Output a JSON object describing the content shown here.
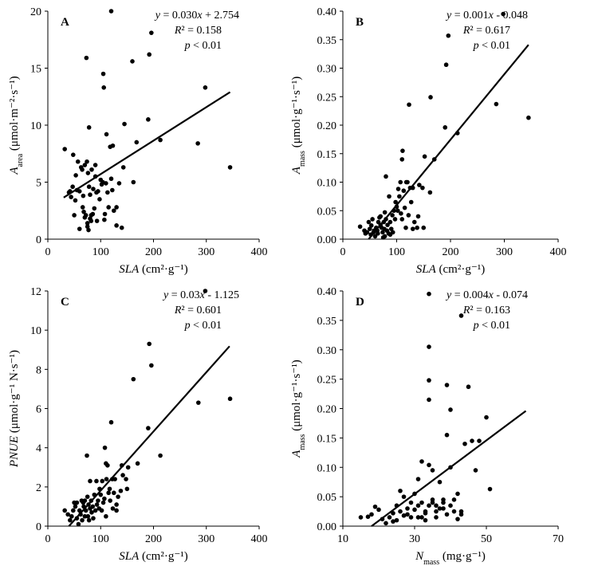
{
  "chart_data": [
    {
      "type": "scatter",
      "panel": "A",
      "xlabel": "SLA (cm²·g⁻¹)",
      "ylabel": "Aarea (μmol·m⁻²·s⁻¹)",
      "xlim": [
        0,
        400
      ],
      "ylim": [
        0,
        20
      ],
      "xticks": [
        "0",
        "100",
        "200",
        "300",
        "400"
      ],
      "yticks": [
        "0",
        "5",
        "10",
        "15",
        "20"
      ],
      "equation": "y = 0.030x + 2.754",
      "r2": "R² = 0.158",
      "p": "p < 0.01",
      "fit": [
        [
          30,
          3.65
        ],
        [
          345,
          12.9
        ]
      ],
      "points": [
        [
          32,
          7.9
        ],
        [
          40,
          4.1
        ],
        [
          42,
          4.2
        ],
        [
          44,
          3.7
        ],
        [
          47,
          4.6
        ],
        [
          48,
          7.4
        ],
        [
          50,
          2.1
        ],
        [
          52,
          3.4
        ],
        [
          53,
          5.6
        ],
        [
          55,
          4.3
        ],
        [
          57,
          6.8
        ],
        [
          60,
          4.2
        ],
        [
          60,
          0.9
        ],
        [
          63,
          6.3
        ],
        [
          65,
          6.1
        ],
        [
          66,
          2.8
        ],
        [
          67,
          3.8
        ],
        [
          68,
          2.4
        ],
        [
          70,
          1.9
        ],
        [
          70,
          6.5
        ],
        [
          72,
          2.1
        ],
        [
          73,
          15.9
        ],
        [
          74,
          6.8
        ],
        [
          75,
          1.4
        ],
        [
          75,
          1.1
        ],
        [
          76,
          5.8
        ],
        [
          77,
          0.8
        ],
        [
          78,
          9.8
        ],
        [
          78,
          4.6
        ],
        [
          80,
          1.8
        ],
        [
          80,
          3.9
        ],
        [
          82,
          1.6
        ],
        [
          82,
          2.1
        ],
        [
          83,
          6.1
        ],
        [
          85,
          2.2
        ],
        [
          86,
          4.4
        ],
        [
          88,
          2.7
        ],
        [
          90,
          5.5
        ],
        [
          90,
          6.5
        ],
        [
          92,
          4.1
        ],
        [
          93,
          1.6
        ],
        [
          95,
          4.2
        ],
        [
          98,
          3.5
        ],
        [
          100,
          5.2
        ],
        [
          102,
          4.8
        ],
        [
          104,
          5.0
        ],
        [
          105,
          14.5
        ],
        [
          106,
          13.3
        ],
        [
          107,
          1.7
        ],
        [
          108,
          2.2
        ],
        [
          110,
          4.9
        ],
        [
          111,
          9.2
        ],
        [
          113,
          4.1
        ],
        [
          115,
          2.8
        ],
        [
          118,
          8.1
        ],
        [
          120,
          20.0
        ],
        [
          120,
          5.3
        ],
        [
          122,
          4.3
        ],
        [
          123,
          8.2
        ],
        [
          125,
          2.5
        ],
        [
          130,
          1.2
        ],
        [
          130,
          2.8
        ],
        [
          135,
          4.9
        ],
        [
          140,
          1.0
        ],
        [
          143,
          6.3
        ],
        [
          145,
          10.1
        ],
        [
          160,
          15.6
        ],
        [
          162,
          5.0
        ],
        [
          168,
          8.5
        ],
        [
          190,
          10.5
        ],
        [
          192,
          16.2
        ],
        [
          196,
          18.1
        ],
        [
          213,
          8.7
        ],
        [
          284,
          8.4
        ],
        [
          298,
          13.3
        ],
        [
          345,
          6.3
        ]
      ]
    },
    {
      "type": "scatter",
      "panel": "B",
      "xlabel": "SLA (cm²·g⁻¹)",
      "ylabel": "Amass (μmol·g⁻¹·s⁻¹)",
      "xlim": [
        0,
        400
      ],
      "ylim": [
        0,
        0.4
      ],
      "xticks": [
        "0",
        "100",
        "200",
        "300",
        "400"
      ],
      "yticks": [
        "0.00",
        "0.05",
        "0.10",
        "0.15",
        "0.20",
        "0.25",
        "0.30",
        "0.35",
        "0.40"
      ],
      "equation": "y = 0.001x - 0.048",
      "r2": "R² = 0.617",
      "p": "p < 0.01",
      "fit": [
        [
          48,
          0.0
        ],
        [
          345,
          0.341
        ]
      ],
      "points": [
        [
          32,
          0.022
        ],
        [
          40,
          0.015
        ],
        [
          42,
          0.01
        ],
        [
          45,
          0.012
        ],
        [
          48,
          0.03
        ],
        [
          50,
          0.018
        ],
        [
          52,
          0.008
        ],
        [
          53,
          0.024
        ],
        [
          55,
          0.035
        ],
        [
          57,
          0.012
        ],
        [
          58,
          0.015
        ],
        [
          60,
          0.005
        ],
        [
          62,
          0.02
        ],
        [
          64,
          0.015
        ],
        [
          65,
          0.01
        ],
        [
          66,
          0.03
        ],
        [
          68,
          0.038
        ],
        [
          70,
          0.025
        ],
        [
          70,
          0.04
        ],
        [
          72,
          0.02
        ],
        [
          74,
          0.012
        ],
        [
          75,
          0.003
        ],
        [
          76,
          0.03
        ],
        [
          77,
          0.018
        ],
        [
          78,
          0.047
        ],
        [
          78,
          0.005
        ],
        [
          80,
          0.035
        ],
        [
          80,
          0.11
        ],
        [
          82,
          0.015
        ],
        [
          83,
          0.025
        ],
        [
          85,
          0.01
        ],
        [
          86,
          0.075
        ],
        [
          88,
          0.008
        ],
        [
          88,
          0.03
        ],
        [
          90,
          0.018
        ],
        [
          92,
          0.042
        ],
        [
          93,
          0.012
        ],
        [
          95,
          0.05
        ],
        [
          97,
          0.035
        ],
        [
          98,
          0.065
        ],
        [
          100,
          0.057
        ],
        [
          102,
          0.05
        ],
        [
          103,
          0.088
        ],
        [
          105,
          0.075
        ],
        [
          107,
          0.1
        ],
        [
          108,
          0.045
        ],
        [
          110,
          0.14
        ],
        [
          110,
          0.035
        ],
        [
          111,
          0.155
        ],
        [
          113,
          0.085
        ],
        [
          115,
          0.055
        ],
        [
          117,
          0.02
        ],
        [
          118,
          0.1
        ],
        [
          120,
          0.1
        ],
        [
          122,
          0.042
        ],
        [
          123,
          0.236
        ],
        [
          125,
          0.09
        ],
        [
          127,
          0.065
        ],
        [
          130,
          0.09
        ],
        [
          130,
          0.018
        ],
        [
          133,
          0.03
        ],
        [
          138,
          0.02
        ],
        [
          140,
          0.04
        ],
        [
          142,
          0.095
        ],
        [
          148,
          0.09
        ],
        [
          150,
          0.02
        ],
        [
          152,
          0.145
        ],
        [
          162,
          0.082
        ],
        [
          163,
          0.249
        ],
        [
          170,
          0.14
        ],
        [
          190,
          0.196
        ],
        [
          192,
          0.306
        ],
        [
          196,
          0.357
        ],
        [
          213,
          0.186
        ],
        [
          285,
          0.237
        ],
        [
          298,
          0.395
        ],
        [
          345,
          0.213
        ]
      ]
    },
    {
      "type": "scatter",
      "panel": "C",
      "xlabel": "SLA (cm²·g⁻¹)",
      "ylabel": "PNUE (μmol·g⁻¹ N·s⁻¹)",
      "xlim": [
        0,
        400
      ],
      "ylim": [
        0,
        12
      ],
      "xticks": [
        "0",
        "100",
        "200",
        "300",
        "400"
      ],
      "yticks": [
        "0",
        "2",
        "4",
        "6",
        "8",
        "10",
        "12"
      ],
      "equation": "y = 0.03x - 1.125",
      "r2": "R² = 0.601",
      "p": "p < 0.01",
      "fit": [
        [
          40,
          0.0
        ],
        [
          344,
          9.18
        ]
      ],
      "points": [
        [
          32,
          0.8
        ],
        [
          38,
          0.6
        ],
        [
          42,
          0.3
        ],
        [
          45,
          0.5
        ],
        [
          48,
          0.8
        ],
        [
          50,
          1.2
        ],
        [
          52,
          1.0
        ],
        [
          55,
          0.4
        ],
        [
          55,
          1.2
        ],
        [
          58,
          0.1
        ],
        [
          60,
          0.8
        ],
        [
          62,
          0.6
        ],
        [
          64,
          1.3
        ],
        [
          65,
          0.3
        ],
        [
          67,
          1.2
        ],
        [
          68,
          1.0
        ],
        [
          70,
          0.5
        ],
        [
          70,
          1.3
        ],
        [
          72,
          0.8
        ],
        [
          74,
          3.6
        ],
        [
          75,
          1.5
        ],
        [
          76,
          0.5
        ],
        [
          77,
          1.1
        ],
        [
          78,
          0.3
        ],
        [
          80,
          2.3
        ],
        [
          80,
          0.9
        ],
        [
          82,
          1.3
        ],
        [
          83,
          0.7
        ],
        [
          85,
          1.0
        ],
        [
          86,
          0.4
        ],
        [
          88,
          1.6
        ],
        [
          90,
          0.8
        ],
        [
          92,
          2.3
        ],
        [
          93,
          1.1
        ],
        [
          95,
          1.3
        ],
        [
          97,
          0.9
        ],
        [
          98,
          1.9
        ],
        [
          100,
          1.6
        ],
        [
          102,
          0.8
        ],
        [
          103,
          2.3
        ],
        [
          105,
          1.2
        ],
        [
          107,
          1.4
        ],
        [
          108,
          4.0
        ],
        [
          110,
          3.2
        ],
        [
          110,
          0.5
        ],
        [
          111,
          2.4
        ],
        [
          113,
          3.1
        ],
        [
          115,
          1.7
        ],
        [
          117,
          1.9
        ],
        [
          118,
          1.3
        ],
        [
          120,
          5.3
        ],
        [
          122,
          2.4
        ],
        [
          123,
          0.9
        ],
        [
          125,
          1.7
        ],
        [
          127,
          2.4
        ],
        [
          130,
          1.1
        ],
        [
          130,
          0.8
        ],
        [
          133,
          1.5
        ],
        [
          138,
          1.8
        ],
        [
          140,
          3.1
        ],
        [
          142,
          2.6
        ],
        [
          148,
          2.4
        ],
        [
          150,
          1.9
        ],
        [
          152,
          3.0
        ],
        [
          162,
          7.5
        ],
        [
          170,
          3.2
        ],
        [
          190,
          5.0
        ],
        [
          192,
          9.3
        ],
        [
          196,
          8.2
        ],
        [
          213,
          3.6
        ],
        [
          285,
          6.3
        ],
        [
          298,
          12.0
        ],
        [
          345,
          6.5
        ]
      ]
    },
    {
      "type": "scatter",
      "panel": "D",
      "xlabel": "Nmass (mg·g⁻¹)",
      "ylabel": "Amass (μmol·g⁻¹·s⁻¹)",
      "xlim": [
        10,
        70
      ],
      "ylim": [
        0,
        0.4
      ],
      "xticks": [
        "10",
        "30",
        "50",
        "70"
      ],
      "yticks": [
        "0.00",
        "0.05",
        "0.10",
        "0.15",
        "0.20",
        "0.25",
        "0.30",
        "0.35",
        "0.40"
      ],
      "equation": "y = 0.004x - 0.074",
      "r2": "R² = 0.163",
      "p": "p < 0.01",
      "fit": [
        [
          18,
          0.0
        ],
        [
          61,
          0.196
        ]
      ],
      "points": [
        [
          15,
          0.015
        ],
        [
          17,
          0.016
        ],
        [
          18,
          0.02
        ],
        [
          19,
          0.033
        ],
        [
          20,
          0.028
        ],
        [
          21,
          0.012
        ],
        [
          22,
          0.005
        ],
        [
          23,
          0.015
        ],
        [
          24,
          0.022
        ],
        [
          24,
          0.008
        ],
        [
          25,
          0.01
        ],
        [
          25,
          0.035
        ],
        [
          26,
          0.025
        ],
        [
          26,
          0.06
        ],
        [
          27,
          0.05
        ],
        [
          27,
          0.018
        ],
        [
          28,
          0.03
        ],
        [
          28,
          0.02
        ],
        [
          29,
          0.04
        ],
        [
          29,
          0.015
        ],
        [
          30,
          0.028
        ],
        [
          30,
          0.055
        ],
        [
          31,
          0.08
        ],
        [
          31,
          0.035
        ],
        [
          31,
          0.015
        ],
        [
          32,
          0.015
        ],
        [
          32,
          0.11
        ],
        [
          32,
          0.04
        ],
        [
          33,
          0.025
        ],
        [
          33,
          0.01
        ],
        [
          33,
          0.022
        ],
        [
          34,
          0.035
        ],
        [
          34,
          0.104
        ],
        [
          34,
          0.248
        ],
        [
          34,
          0.305
        ],
        [
          34,
          0.215
        ],
        [
          34,
          0.395
        ],
        [
          35,
          0.045
        ],
        [
          35,
          0.095
        ],
        [
          35,
          0.04
        ],
        [
          36,
          0.015
        ],
        [
          36,
          0.035
        ],
        [
          36,
          0.025
        ],
        [
          37,
          0.075
        ],
        [
          37,
          0.03
        ],
        [
          38,
          0.045
        ],
        [
          38,
          0.03
        ],
        [
          38,
          0.04
        ],
        [
          39,
          0.02
        ],
        [
          39,
          0.155
        ],
        [
          39,
          0.24
        ],
        [
          40,
          0.1
        ],
        [
          40,
          0.198
        ],
        [
          40,
          0.035
        ],
        [
          41,
          0.025
        ],
        [
          41,
          0.045
        ],
        [
          42,
          0.055
        ],
        [
          42,
          0.012
        ],
        [
          43,
          0.02
        ],
        [
          43,
          0.025
        ],
        [
          43,
          0.358
        ],
        [
          44,
          0.14
        ],
        [
          45,
          0.237
        ],
        [
          46,
          0.145
        ],
        [
          47,
          0.095
        ],
        [
          48,
          0.145
        ],
        [
          50,
          0.185
        ],
        [
          51,
          0.063
        ]
      ]
    }
  ]
}
